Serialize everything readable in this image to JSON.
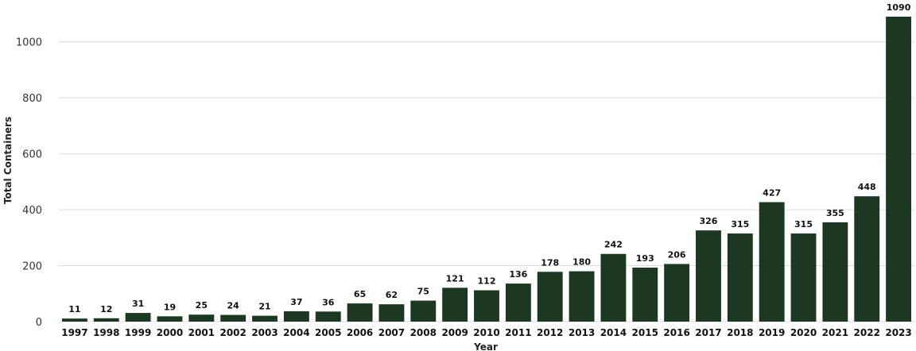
{
  "chart_data": {
    "type": "bar",
    "categories": [
      "1997",
      "1998",
      "1999",
      "2000",
      "2001",
      "2002",
      "2003",
      "2004",
      "2005",
      "2006",
      "2007",
      "2008",
      "2009",
      "2010",
      "2011",
      "2012",
      "2013",
      "2014",
      "2015",
      "2016",
      "2017",
      "2018",
      "2019",
      "2020",
      "2021",
      "2022",
      "2023"
    ],
    "series": [
      {
        "values": [
          11,
          12,
          31,
          19,
          25,
          24,
          21,
          37,
          36,
          65,
          62,
          75,
          121,
          112,
          136,
          178,
          180,
          242,
          193,
          206,
          326,
          315,
          427,
          315,
          355,
          448,
          1090
        ]
      }
    ],
    "xlabel": "Year",
    "ylabel": "Total Containers",
    "ylim": [
      0,
      1090
    ],
    "yticks": [
      0,
      200,
      400,
      600,
      800,
      1000
    ],
    "grid": true,
    "data_labels": true,
    "bar_color": "#1c3822"
  }
}
